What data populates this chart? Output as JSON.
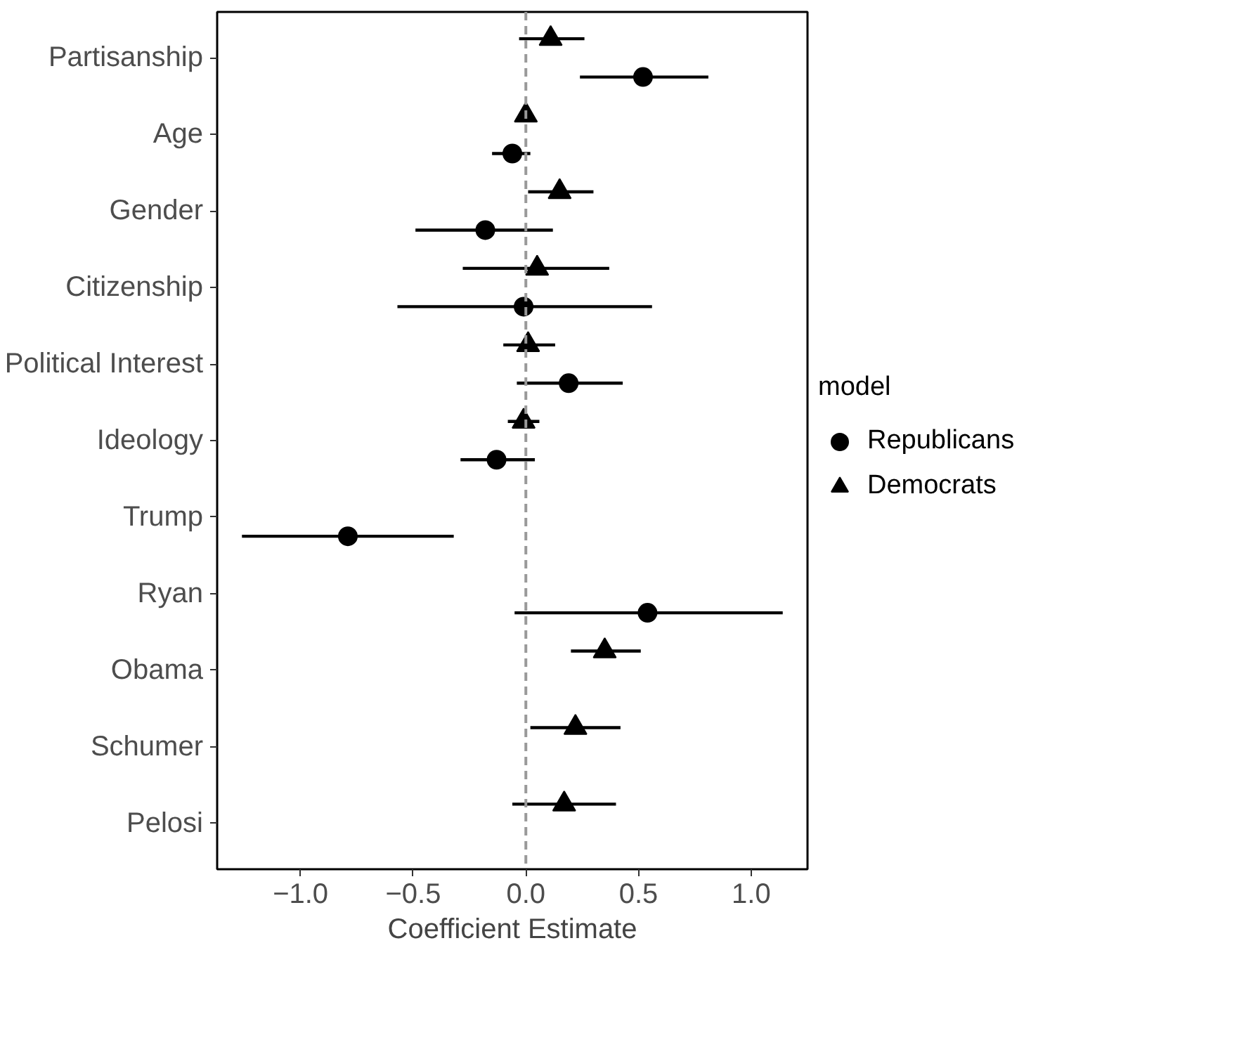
{
  "chart_data": {
    "type": "scatter",
    "xlabel": "Coefficient Estimate",
    "legend_title": "model",
    "legend": "right",
    "grid": false,
    "categories": [
      "Partisanship",
      "Age",
      "Gender",
      "Citizenship",
      "Political Interest",
      "Ideology",
      "Trump",
      "Ryan",
      "Obama",
      "Schumer",
      "Pelosi"
    ],
    "xlim": [
      -1.37,
      1.25
    ],
    "xticks": [
      {
        "value": -1.0,
        "label": "−1.0"
      },
      {
        "value": -0.5,
        "label": "−0.5"
      },
      {
        "value": 0.0,
        "label": "0.0"
      },
      {
        "value": 0.5,
        "label": "0.5"
      },
      {
        "value": 1.0,
        "label": "1.0"
      }
    ],
    "orientation": "horizontal",
    "series": [
      {
        "name": "Republicans",
        "color": "#000000",
        "marker": "circle",
        "values": [
          0.52,
          -0.06,
          -0.18,
          -0.01,
          0.19,
          -0.13,
          -0.79,
          0.54,
          null,
          null,
          null
        ],
        "errors": [
          [
            0.24,
            0.81
          ],
          [
            -0.15,
            0.02
          ],
          [
            -0.49,
            0.12
          ],
          [
            -0.57,
            0.56
          ],
          [
            -0.04,
            0.43
          ],
          [
            -0.29,
            0.04
          ],
          [
            -1.26,
            -0.32
          ],
          [
            -0.05,
            1.14
          ],
          null,
          null,
          null
        ]
      },
      {
        "name": "Democrats",
        "color": "#000000",
        "marker": "triangle",
        "values": [
          0.11,
          0.0,
          0.15,
          0.05,
          0.01,
          -0.01,
          null,
          null,
          0.35,
          0.22,
          0.17
        ],
        "errors": [
          [
            -0.03,
            0.26
          ],
          [
            -0.01,
            0.01
          ],
          [
            0.01,
            0.3
          ],
          [
            -0.28,
            0.37
          ],
          [
            -0.1,
            0.13
          ],
          [
            -0.08,
            0.06
          ],
          null,
          null,
          [
            0.2,
            0.51
          ],
          [
            0.02,
            0.42
          ],
          [
            -0.06,
            0.4
          ]
        ]
      }
    ],
    "ref_lines": [
      {
        "axis": "x",
        "value": 0,
        "color": "#999999",
        "line_style": "dashed"
      }
    ]
  }
}
